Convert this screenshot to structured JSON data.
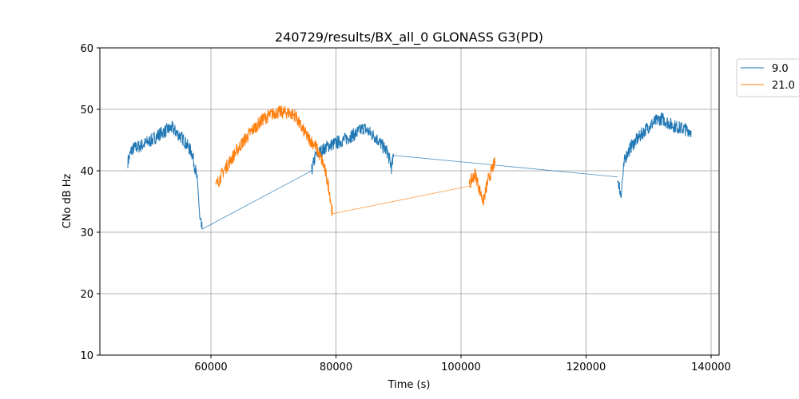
{
  "chart_data": {
    "type": "line",
    "title": "240729/results/BX_all_0 GLONASS G3(PD)",
    "xlabel": "Time (s)",
    "ylabel": "CNo dB Hz",
    "xlim": [
      42236,
      141280
    ],
    "ylim": [
      10,
      60
    ],
    "xticks": [
      60000,
      80000,
      100000,
      120000,
      140000
    ],
    "yticks": [
      10,
      20,
      30,
      40,
      50,
      60
    ],
    "grid": true,
    "legend_position": "outside-top-right",
    "series": [
      {
        "name": "9.0",
        "color": "#1f77b4",
        "segments": [
          [
            [
              46709,
              41.5
            ],
            [
              47348,
              43.5
            ],
            [
              48626,
              44
            ],
            [
              50543,
              45
            ],
            [
              51821,
              46
            ],
            [
              53738,
              47
            ],
            [
              55655,
              45
            ],
            [
              56933,
              43
            ],
            [
              57572,
              40
            ],
            [
              57956,
              37
            ],
            [
              58211,
              32
            ],
            [
              58594,
              30.5
            ]
          ],
          [
            [
              76103,
              40
            ],
            [
              76742,
              42.5
            ],
            [
              78659,
              44
            ],
            [
              81215,
              45
            ],
            [
              83132,
              46
            ],
            [
              84410,
              47
            ],
            [
              86327,
              45.5
            ],
            [
              88244,
              43
            ],
            [
              88883,
              40.5
            ],
            [
              89266,
              42.5
            ]
          ],
          [
            [
              125050,
              39
            ],
            [
              125562,
              36
            ],
            [
              126200,
              42
            ],
            [
              127223,
              44
            ],
            [
              128501,
              45.5
            ],
            [
              129779,
              47
            ],
            [
              131057,
              48
            ],
            [
              132079,
              48.5
            ],
            [
              133613,
              47.5
            ],
            [
              134891,
              47
            ],
            [
              136808,
              46.5
            ]
          ]
        ]
      },
      {
        "name": "21.0",
        "color": "#ff7f0e",
        "segments": [
          [
            [
              60767,
              37.5
            ],
            [
              62045,
              40
            ],
            [
              63323,
              42
            ],
            [
              64601,
              44
            ],
            [
              66518,
              46.5
            ],
            [
              68435,
              48.5
            ],
            [
              70352,
              49.5
            ],
            [
              72269,
              49.5
            ],
            [
              73547,
              49
            ],
            [
              74186,
              47.5
            ],
            [
              75464,
              45.5
            ],
            [
              76742,
              44
            ],
            [
              78020,
              41
            ],
            [
              78915,
              37
            ],
            [
              79426,
              33
            ]
          ],
          [
            [
              101280,
              37.5
            ],
            [
              101663,
              38.5
            ],
            [
              102302,
              39.5
            ],
            [
              102941,
              37
            ],
            [
              103580,
              35
            ],
            [
              104219,
              38
            ],
            [
              104858,
              40
            ],
            [
              105497,
              41.5
            ]
          ]
        ]
      }
    ]
  }
}
